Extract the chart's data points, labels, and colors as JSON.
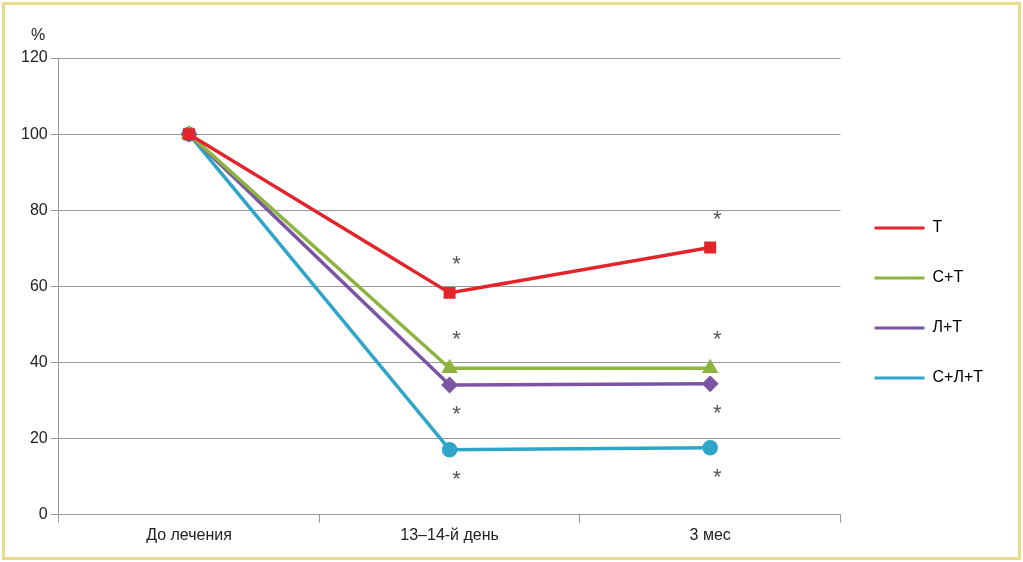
{
  "chart_data": {
    "type": "line",
    "ylabel": "%",
    "categories": [
      "До лечения",
      "13–14-й день",
      "3 мес"
    ],
    "series": [
      {
        "name": "Т",
        "color": "#e3242b",
        "marker": "square",
        "values": [
          100,
          58.3,
          70.2
        ]
      },
      {
        "name": "С+Т",
        "color": "#8db43e",
        "marker": "triangle",
        "values": [
          100,
          38.5,
          38.5
        ]
      },
      {
        "name": "Л+Т",
        "color": "#7b55a3",
        "marker": "diamond",
        "values": [
          100,
          34.1,
          34.4
        ]
      },
      {
        "name": "С+Л+Т",
        "color": "#2fa5c8",
        "marker": "circle",
        "values": [
          100,
          17.1,
          17.6
        ]
      }
    ],
    "ylim": [
      0,
      120
    ],
    "yticks": [
      0,
      20,
      40,
      60,
      80,
      100,
      120
    ],
    "grid": "y",
    "legend": "right",
    "line_style": "solid",
    "annotations": [
      {
        "text": "*",
        "x": "13–14-й день",
        "y": 58.3
      },
      {
        "text": "*",
        "x": "13–14-й день",
        "y": 38.5
      },
      {
        "text": "*",
        "x": "13–14-й день",
        "y": 34.1
      },
      {
        "text": "*",
        "x": "13–14-й день",
        "y": 17.1
      },
      {
        "text": "*",
        "x": "3 мес",
        "y": 70.2
      },
      {
        "text": "*",
        "x": "3 мес",
        "y": 38.5
      },
      {
        "text": "*",
        "x": "3 мес",
        "y": 34.4
      },
      {
        "text": "*",
        "x": "3 мес",
        "y": 17.6
      }
    ]
  }
}
